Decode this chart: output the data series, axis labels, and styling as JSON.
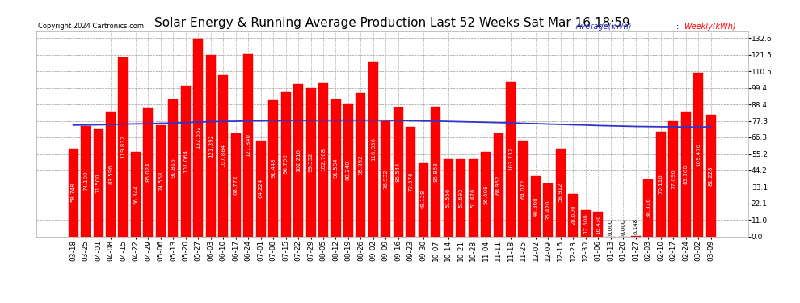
{
  "title": "Solar Energy & Running Average Production Last 52 Weeks Sat Mar 16 18:59",
  "copyright": "Copyright 2024 Cartronics.com",
  "legend_avg": "Average(kWh)",
  "legend_weekly": "Weekly(kWh)",
  "categories": [
    "03-18",
    "03-25",
    "04-01",
    "04-08",
    "04-15",
    "04-22",
    "04-29",
    "05-06",
    "05-13",
    "05-20",
    "05-27",
    "06-03",
    "06-10",
    "06-17",
    "06-24",
    "07-01",
    "07-08",
    "07-15",
    "07-22",
    "07-29",
    "08-05",
    "08-12",
    "08-19",
    "08-26",
    "09-02",
    "09-09",
    "09-16",
    "09-23",
    "09-30",
    "10-07",
    "10-14",
    "10-21",
    "10-28",
    "11-04",
    "11-11",
    "11-18",
    "11-25",
    "12-02",
    "12-09",
    "12-16",
    "12-23",
    "12-30",
    "01-06",
    "01-13",
    "01-20",
    "01-27",
    "02-03",
    "02-10",
    "02-17",
    "02-24",
    "03-02",
    "03-09"
  ],
  "weekly_values": [
    58.748,
    74.1,
    71.5,
    83.596,
    119.832,
    56.344,
    86.024,
    74.568,
    91.816,
    101.064,
    132.552,
    121.392,
    107.884,
    68.772,
    121.84,
    64.224,
    91.448,
    96.76,
    102.216,
    99.552,
    102.768,
    91.584,
    88.24,
    95.892,
    116.856,
    76.932,
    86.544,
    73.576,
    49.128,
    86.868,
    51.556,
    51.692,
    51.476,
    56.608,
    68.952,
    103.732,
    64.072,
    40.368,
    35.42,
    58.912,
    28.6,
    17.6,
    16.436,
    0.0,
    0.0,
    0.148,
    38.316,
    70.116,
    77.096,
    83.36,
    109.476,
    81.228
  ],
  "avg_values": [
    74.5,
    74.6,
    74.7,
    74.9,
    75.2,
    75.3,
    75.5,
    75.7,
    75.9,
    76.2,
    76.5,
    76.8,
    77.0,
    77.1,
    77.3,
    77.4,
    77.5,
    77.6,
    77.7,
    77.7,
    77.8,
    77.8,
    77.8,
    77.8,
    77.8,
    77.7,
    77.6,
    77.5,
    77.3,
    77.2,
    77.0,
    76.8,
    76.6,
    76.4,
    76.2,
    76.0,
    75.7,
    75.5,
    75.2,
    75.0,
    74.7,
    74.5,
    74.2,
    74.0,
    73.8,
    73.6,
    73.5,
    73.4,
    73.3,
    73.2,
    73.2,
    73.3
  ],
  "bar_color": "#ff0000",
  "bar_edge_color": "#cc0000",
  "avg_line_color": "#3333cc",
  "background_color": "#ffffff",
  "grid_color": "#999999",
  "title_fontsize": 11,
  "tick_fontsize": 6.5,
  "yticks": [
    0.0,
    11.0,
    22.1,
    33.1,
    44.2,
    55.2,
    66.3,
    77.3,
    88.4,
    99.4,
    110.5,
    121.5,
    132.6
  ],
  "ylim": [
    0,
    138
  ],
  "value_label_fontsize": 5.0
}
